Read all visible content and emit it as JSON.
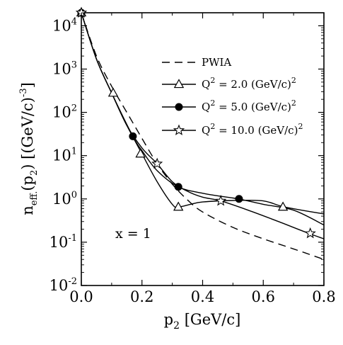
{
  "chart_data": {
    "type": "line",
    "xlabel": {
      "main": "p",
      "sub": "2",
      "rest": " [GeV/c]"
    },
    "ylabel": {
      "main": "n",
      "sub": "eff.",
      "mid": "(p",
      "sub2": "2",
      "rest": ") [(GeV/c)",
      "sup": "-3",
      "end": "]"
    },
    "xlim": [
      0,
      0.8
    ],
    "ylim": [
      0.01,
      20000
    ],
    "yscale": "log",
    "xticks": [
      "0.0",
      "0.2",
      "0.4",
      "0.6",
      "0.8"
    ],
    "ytick_values": [
      0.01,
      0.1,
      1,
      10,
      100,
      1000,
      10000
    ],
    "ytick_exponents": [
      "-2",
      "-1",
      "0",
      "1",
      "2",
      "3",
      "4"
    ],
    "ytick_base": "10",
    "annotation": "x = 1",
    "grid": false,
    "legend_position": "top-right",
    "series": [
      {
        "name": "PWIA",
        "style": "dashed",
        "marker": "none",
        "x": [
          0.0,
          0.05,
          0.1,
          0.15,
          0.2,
          0.25,
          0.3,
          0.35,
          0.4,
          0.5,
          0.6,
          0.7,
          0.8
        ],
        "y": [
          20000,
          2000,
          400,
          100,
          25,
          6.5,
          2.2,
          0.95,
          0.5,
          0.22,
          0.12,
          0.07,
          0.04
        ]
      },
      {
        "name": "Q² = 2.0 (GeV/c)²",
        "legend": {
          "pre": "Q",
          "sup1": "2",
          "mid": " = 2.0 (GeV/c)",
          "sup2": "2"
        },
        "style": "solid",
        "marker": "triangle",
        "x": [
          0.0,
          0.05,
          0.1,
          0.15,
          0.2,
          0.25,
          0.3,
          0.32,
          0.36,
          0.4,
          0.5,
          0.6,
          0.67,
          0.8
        ],
        "y": [
          20000,
          1700,
          280,
          50,
          11,
          2.5,
          0.75,
          0.65,
          0.75,
          0.85,
          0.92,
          0.9,
          0.65,
          0.45
        ],
        "markers_x": [
          0.0,
          0.105,
          0.195,
          0.32,
          0.665
        ],
        "markers_y": [
          20000,
          280,
          11,
          0.65,
          0.65
        ]
      },
      {
        "name": "Q² = 5.0 (GeV/c)²",
        "legend": {
          "pre": "Q",
          "sup1": "2",
          "mid": " = 5.0 (GeV/c)",
          "sup2": "2"
        },
        "style": "solid",
        "marker": "circle",
        "x": [
          0.0,
          0.05,
          0.1,
          0.17,
          0.2,
          0.25,
          0.32,
          0.4,
          0.5,
          0.52,
          0.6,
          0.7,
          0.8
        ],
        "y": [
          20000,
          1700,
          280,
          28,
          13,
          4.5,
          1.9,
          1.35,
          1.05,
          1.0,
          0.75,
          0.55,
          0.25
        ],
        "markers_x": [
          0.0,
          0.17,
          0.32,
          0.52
        ],
        "markers_y": [
          20000,
          28,
          1.9,
          1.0
        ]
      },
      {
        "name": "Q² = 10.0 (GeV/c)²",
        "legend": {
          "pre": "Q",
          "sup1": "2",
          "mid": " = 10.0 (GeV/c)",
          "sup2": "2"
        },
        "style": "solid",
        "marker": "star",
        "x": [
          0.0,
          0.05,
          0.1,
          0.15,
          0.2,
          0.25,
          0.3,
          0.35,
          0.4,
          0.46,
          0.55,
          0.65,
          0.75,
          0.8
        ],
        "y": [
          20000,
          1700,
          280,
          50,
          15,
          6.5,
          2.5,
          1.5,
          1.1,
          0.9,
          0.55,
          0.3,
          0.16,
          0.12
        ],
        "markers_x": [
          0.0,
          0.25,
          0.46,
          0.755
        ],
        "markers_y": [
          20000,
          6.5,
          0.9,
          0.16
        ]
      }
    ]
  }
}
